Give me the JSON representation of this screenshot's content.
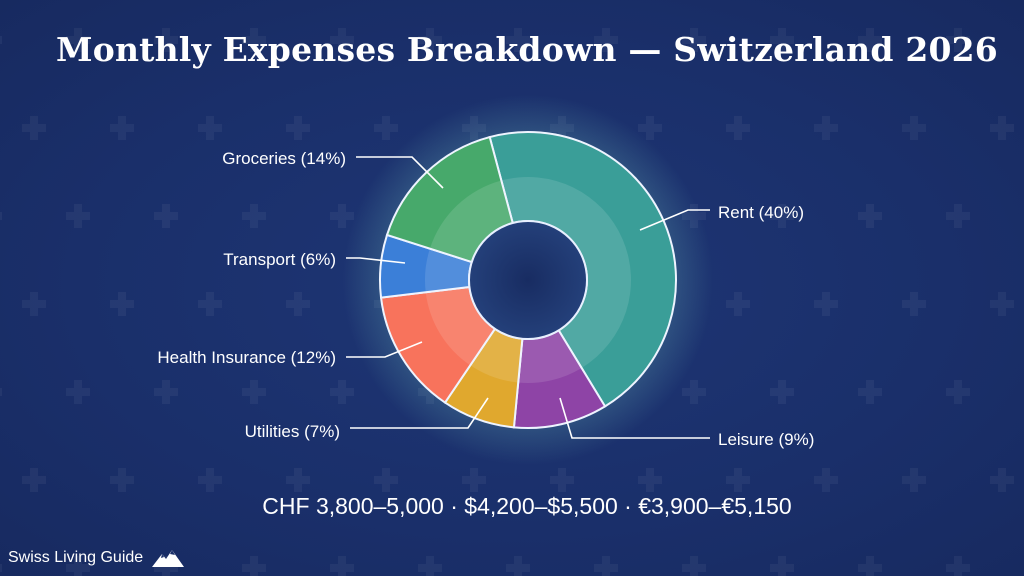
{
  "chart_data": {
    "type": "donut",
    "title": "Monthly Expenses Breakdown — Switzerland 2026",
    "slices": [
      {
        "label": "Rent (40%)",
        "value": 40,
        "color": "#3a9e98"
      },
      {
        "label": "Leisure (9%)",
        "value": 9,
        "color": "#8e44a6"
      },
      {
        "label": "Utilities (7%)",
        "value": 7,
        "color": "#e0a82e"
      },
      {
        "label": "Health Insurance (12%)",
        "value": 12,
        "color": "#f8735c"
      },
      {
        "label": "Transport (6%)",
        "value": 6,
        "color": "#3b7fd8"
      },
      {
        "label": "Groceries (14%)",
        "value": 14,
        "color": "#47a96b"
      }
    ],
    "subtitle": "CHF 3,800–5,000 · $4,200–$5,500 · €3,900–€5,150"
  },
  "brand": {
    "name": "Swiss Living Guide",
    "icon": "mountain-icon"
  },
  "background_color": "#1a2f6a"
}
